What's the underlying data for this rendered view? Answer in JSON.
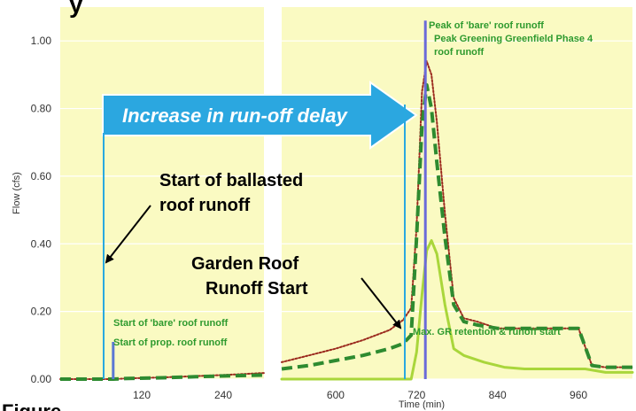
{
  "top_fragment": "y",
  "bottom_fragment": "Figure ...",
  "chart_data": {
    "type": "line",
    "ylabel": "Flow (cfs)",
    "xlabel": "Time (min)",
    "ylim": [
      0,
      1.1
    ],
    "y_ticks": [
      "0.00",
      "0.20",
      "0.40",
      "0.60",
      "0.80",
      "1.00"
    ],
    "panels": [
      {
        "xlim": [
          0,
          300
        ],
        "x_ticks": [
          "120",
          "240"
        ]
      },
      {
        "xlim": [
          520,
          1040
        ],
        "x_ticks": [
          "600",
          "720",
          "840",
          "960"
        ]
      }
    ],
    "series": [
      {
        "x": [
          0,
          45,
          78,
          100,
          150,
          200,
          250,
          300,
          520,
          560,
          600,
          640,
          680,
          700,
          712,
          720,
          728,
          735,
          742,
          750,
          762,
          775,
          790,
          810,
          840,
          870,
          900,
          930,
          960,
          980,
          1000,
          1040
        ],
        "values": [
          0.0,
          0.0,
          0.0,
          0.002,
          0.005,
          0.009,
          0.013,
          0.018,
          0.05,
          0.07,
          0.09,
          0.115,
          0.145,
          0.175,
          0.21,
          0.45,
          0.85,
          0.94,
          0.9,
          0.76,
          0.49,
          0.24,
          0.18,
          0.17,
          0.15,
          0.15,
          0.15,
          0.15,
          0.15,
          0.04,
          0.035,
          0.035
        ],
        "color": "#9b2a1e",
        "style": "dotted"
      },
      {
        "x": [
          0,
          78,
          100,
          150,
          200,
          250,
          300,
          520,
          560,
          600,
          640,
          680,
          700,
          712,
          720,
          728,
          735,
          742,
          750,
          762,
          775,
          790,
          810,
          840,
          870,
          900,
          930,
          960,
          980,
          1000,
          1040
        ],
        "values": [
          0.0,
          0.0,
          0.002,
          0.004,
          0.007,
          0.01,
          0.012,
          0.03,
          0.04,
          0.055,
          0.07,
          0.09,
          0.105,
          0.13,
          0.42,
          0.75,
          0.87,
          0.8,
          0.64,
          0.42,
          0.22,
          0.17,
          0.16,
          0.15,
          0.15,
          0.15,
          0.15,
          0.15,
          0.04,
          0.035,
          0.035
        ],
        "color": "#2e8b30",
        "style": "dashed"
      },
      {
        "x": [
          520,
          600,
          700,
          712,
          720,
          728,
          735,
          742,
          750,
          762,
          775,
          790,
          820,
          850,
          880,
          910,
          940,
          970,
          1000,
          1040
        ],
        "values": [
          0.0,
          0.0,
          0.0,
          0.0,
          0.08,
          0.25,
          0.38,
          0.41,
          0.37,
          0.22,
          0.09,
          0.07,
          0.05,
          0.035,
          0.03,
          0.03,
          0.03,
          0.03,
          0.02,
          0.02
        ],
        "color": "#a9d63b",
        "style": "solid"
      }
    ],
    "markers": [
      {
        "panel": 0,
        "x": 78,
        "value": 0.11,
        "color": "#5b78d4"
      },
      {
        "panel": 1,
        "x": 733,
        "value": 1.06,
        "color": "#6a6ad9"
      }
    ],
    "annotations": {
      "arrow_label": "Increase in run-off delay",
      "start_ballasted_line1": "Start of ballasted",
      "start_ballasted_line2": "roof runoff",
      "garden_line1": "Garden Roof",
      "garden_line2": "Runoff Start",
      "start_bare": "Start of 'bare' roof runoff",
      "start_prop": "Start of prop. roof runoff",
      "peak_bare": "Peak of 'bare' roof runoff",
      "peak_greening_line1": "Peak Greening Greenfield Phase 4",
      "peak_greening_line2": "roof runoff",
      "max_gr": "Max. GR retention & runoff start"
    }
  }
}
